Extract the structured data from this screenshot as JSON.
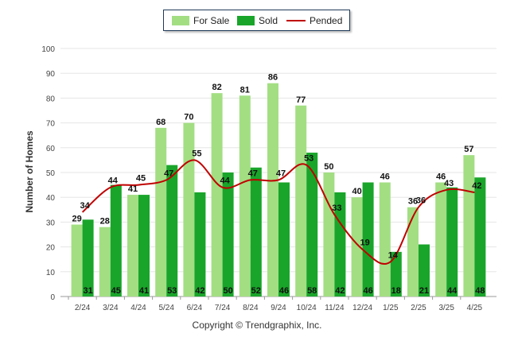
{
  "chart_data": {
    "type": "bar",
    "title": "",
    "xlabel": "",
    "ylabel": "Number of Homes",
    "ylim": [
      0,
      100
    ],
    "yticks": [
      0,
      10,
      20,
      30,
      40,
      50,
      60,
      70,
      80,
      90,
      100
    ],
    "grid": true,
    "legend_position": "top-center",
    "categories": [
      "2/24",
      "3/24",
      "4/24",
      "5/24",
      "6/24",
      "7/24",
      "8/24",
      "9/24",
      "10/24",
      "11/24",
      "12/24",
      "1/25",
      "2/25",
      "3/25",
      "4/25"
    ],
    "series": [
      {
        "name": "For Sale",
        "type": "bar",
        "color": "#a3de83",
        "values": [
          29,
          28,
          41,
          68,
          70,
          82,
          81,
          86,
          77,
          50,
          40,
          46,
          36,
          46,
          57
        ]
      },
      {
        "name": "Sold",
        "type": "bar",
        "color": "#19a52a",
        "values": [
          31,
          45,
          41,
          53,
          42,
          50,
          52,
          46,
          58,
          42,
          46,
          18,
          21,
          44,
          48
        ]
      },
      {
        "name": "Pended",
        "type": "line",
        "color": "#c00000",
        "values": [
          34,
          44,
          45,
          47,
          55,
          44,
          47,
          47,
          53,
          33,
          19,
          14,
          36,
          43,
          42
        ]
      }
    ]
  },
  "copyright": "Copyright © Trendgraphix, Inc."
}
